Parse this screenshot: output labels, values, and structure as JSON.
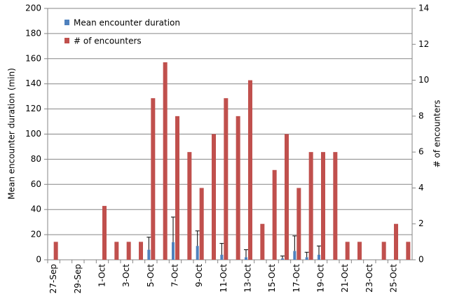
{
  "chart_data": {
    "type": "bar",
    "categories": [
      "27-Sep",
      null,
      "29-Sep",
      null,
      "1-Oct",
      null,
      "3-Oct",
      null,
      "5-Oct",
      null,
      "7-Oct",
      null,
      "9-Oct",
      null,
      "11-Oct",
      null,
      "13-Oct",
      null,
      "15-Oct",
      null,
      "17-Oct",
      null,
      "19-Oct",
      null,
      "21-Oct",
      null,
      "23-Oct",
      null,
      "25-Oct",
      null
    ],
    "series": [
      {
        "name": "Mean encounter duration",
        "color": "#4f81bd",
        "values": [
          0,
          0,
          0,
          0,
          0,
          0,
          0,
          0,
          8,
          0,
          14,
          0,
          11,
          0,
          4,
          0,
          2,
          0,
          0,
          1,
          7,
          2,
          4,
          0,
          0,
          0,
          0,
          0,
          0,
          0
        ],
        "errors": [
          null,
          null,
          null,
          null,
          null,
          null,
          null,
          null,
          10,
          null,
          20,
          null,
          12,
          null,
          9,
          null,
          6,
          null,
          null,
          2,
          12,
          4,
          7,
          null,
          null,
          null,
          null,
          null,
          null,
          null
        ]
      },
      {
        "name": "# of encounters",
        "color": "#c0504d",
        "axis": "y2",
        "values": [
          1,
          0,
          0,
          0,
          3,
          1,
          1,
          1,
          9,
          11,
          8,
          6,
          4,
          7,
          9,
          8,
          10,
          2,
          5,
          7,
          4,
          6,
          6,
          6,
          1,
          1,
          0,
          1,
          2,
          1
        ]
      }
    ],
    "ylabel": "Mean encounter duration (min)",
    "y2label": "# of encounters",
    "ylim": [
      0,
      200
    ],
    "yticks": [
      0,
      20,
      40,
      60,
      80,
      100,
      120,
      140,
      160,
      180,
      200
    ],
    "y2lim": [
      0,
      14
    ],
    "y2ticks": [
      0,
      2,
      4,
      6,
      8,
      10,
      12,
      14
    ],
    "grid": true,
    "legend": "top-left"
  }
}
